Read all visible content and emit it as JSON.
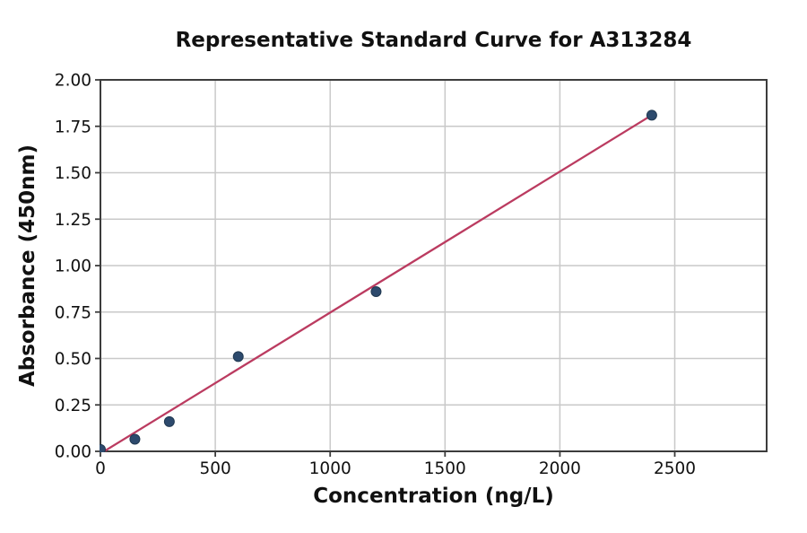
{
  "chart_data": {
    "type": "scatter",
    "title": "Representative Standard Curve for A313284",
    "xlabel": "Concentration (ng/L)",
    "ylabel": "Absorbance (450nm)",
    "x": [
      0,
      150,
      300,
      600,
      1200,
      2400
    ],
    "y": [
      0.01,
      0.065,
      0.16,
      0.51,
      0.86,
      1.81
    ],
    "trend_line": {
      "x1": 16,
      "y1": 0.0,
      "x2": 2400,
      "y2": 1.81
    },
    "xlim": [
      0,
      2900
    ],
    "ylim": [
      0,
      2.0
    ],
    "xtick_labels": [
      "0",
      "500",
      "1000",
      "1500",
      "2000",
      "2500"
    ],
    "ytick_labels": [
      "0.00",
      "0.25",
      "0.50",
      "0.75",
      "1.00",
      "1.25",
      "1.50",
      "1.75",
      "2.00"
    ],
    "grid": true,
    "legend": null,
    "colors": {
      "marker_fill": "#2d4a6d",
      "marker_edge": "#203850",
      "line": "#bb3b60",
      "grid": "#c9c9c9",
      "spine": "#3c3c3c",
      "background": "#ffffff"
    }
  }
}
